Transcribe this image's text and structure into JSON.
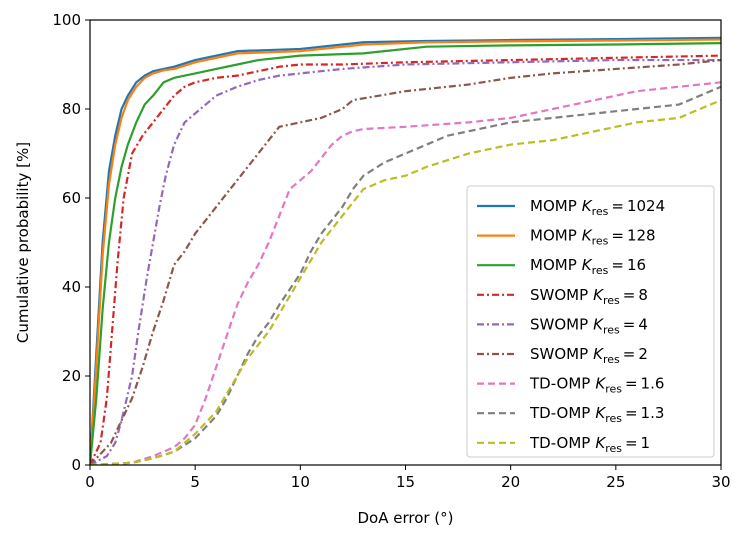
{
  "chart_data": {
    "type": "line",
    "xlabel": "DoA error (°)",
    "ylabel": "Cumulative probability [%]",
    "xlim": [
      0,
      30
    ],
    "ylim": [
      0,
      100
    ],
    "xticks": [
      0,
      5,
      10,
      15,
      20,
      25,
      30
    ],
    "yticks": [
      0,
      20,
      40,
      60,
      80,
      100
    ],
    "grid": false,
    "legend_position": "center-right",
    "series": [
      {
        "name": "MOMP",
        "k_symbol": "K",
        "k_sub": "res",
        "k_value": "1024",
        "color": "#1f77b4",
        "dash": "solid",
        "x": [
          0,
          0.3,
          0.6,
          0.9,
          1.2,
          1.5,
          1.8,
          2.2,
          2.6,
          3,
          3.5,
          4,
          5,
          7,
          10,
          13,
          16,
          20,
          25,
          30
        ],
        "y": [
          0,
          25,
          50,
          66,
          74,
          80,
          83,
          86,
          87.5,
          88.5,
          89,
          89.5,
          91,
          93,
          93.5,
          95,
          95.3,
          95.5,
          95.7,
          96
        ]
      },
      {
        "name": "MOMP",
        "k_symbol": "K",
        "k_sub": "res",
        "k_value": "128",
        "color": "#ff7f0e",
        "dash": "solid",
        "x": [
          0,
          0.3,
          0.6,
          0.9,
          1.2,
          1.5,
          1.8,
          2.2,
          2.6,
          3,
          3.5,
          4,
          5,
          7,
          10,
          13,
          16,
          20,
          25,
          30
        ],
        "y": [
          0,
          22,
          47,
          63,
          72,
          78,
          82,
          85,
          87,
          88,
          88.7,
          89,
          90.5,
          92.5,
          93,
          94.5,
          95,
          95.2,
          95.4,
          95.6
        ]
      },
      {
        "name": "MOMP",
        "k_symbol": "K",
        "k_sub": "res",
        "k_value": "16",
        "color": "#2ca02c",
        "dash": "solid",
        "x": [
          0,
          0.3,
          0.6,
          0.9,
          1.2,
          1.5,
          1.8,
          2.2,
          2.6,
          3,
          3.5,
          4,
          5,
          6,
          7,
          8,
          10,
          13,
          16,
          20,
          25,
          30
        ],
        "y": [
          0,
          15,
          35,
          50,
          60,
          67,
          72,
          77,
          81,
          83,
          86,
          87,
          88,
          89,
          90,
          91,
          92,
          92.5,
          94,
          94.3,
          94.5,
          94.8
        ]
      },
      {
        "name": "SWOMP",
        "k_symbol": "K",
        "k_sub": "res",
        "k_value": "8",
        "color": "#d62728",
        "dash": "dashdot",
        "x": [
          0,
          0.5,
          0.8,
          1,
          1.3,
          1.6,
          2,
          2.5,
          3,
          3.5,
          4,
          4.5,
          5,
          6,
          7,
          8,
          9,
          10,
          12,
          15,
          20,
          25,
          30
        ],
        "y": [
          0,
          5,
          15,
          27,
          45,
          60,
          70,
          74,
          77,
          80,
          83,
          85,
          86,
          87,
          87.5,
          88.5,
          89.5,
          90,
          90,
          90.5,
          91,
          91.5,
          92
        ]
      },
      {
        "name": "SWOMP",
        "k_symbol": "K",
        "k_sub": "res",
        "k_value": "4",
        "color": "#9467bd",
        "dash": "dashdot",
        "x": [
          0,
          0.8,
          1.2,
          1.5,
          2,
          2.3,
          2.7,
          3,
          3.3,
          3.6,
          4,
          4.5,
          5,
          5.5,
          6,
          7,
          8,
          9,
          10,
          11,
          12,
          15,
          20,
          25,
          30
        ],
        "y": [
          0,
          2,
          5,
          10,
          20,
          30,
          42,
          50,
          58,
          65,
          72,
          77,
          79,
          81,
          83,
          85,
          86.5,
          87.5,
          88,
          88.5,
          89,
          90,
          90.5,
          91,
          91
        ]
      },
      {
        "name": "SWOMP",
        "k_symbol": "K",
        "k_sub": "res",
        "k_value": "2",
        "color": "#8c564b",
        "dash": "dashdot",
        "x": [
          0,
          1,
          1.5,
          2,
          2.5,
          3,
          3.5,
          4,
          4.5,
          5,
          6,
          7,
          8,
          8.5,
          9,
          10,
          11,
          12,
          12.5,
          15,
          18,
          20,
          22,
          25,
          28,
          30
        ],
        "y": [
          0,
          5,
          10,
          15,
          22,
          30,
          37,
          45,
          48,
          52,
          58,
          64,
          70,
          73,
          76,
          77,
          78,
          80,
          82,
          84,
          85.5,
          87,
          88,
          89,
          90,
          91
        ]
      },
      {
        "name": "TD-OMP",
        "k_symbol": "K",
        "k_sub": "res",
        "k_value": "1.6",
        "color": "#e377c2",
        "dash": "dashed",
        "x": [
          0,
          2,
          3,
          4,
          4.5,
          5,
          5.5,
          6,
          6.5,
          7,
          7.5,
          8,
          8.5,
          9,
          9.5,
          10,
          10.5,
          11,
          11.5,
          12,
          12.5,
          13,
          15,
          18,
          20,
          22,
          24,
          26,
          28,
          30
        ],
        "y": [
          0,
          0.5,
          2,
          4,
          6,
          9,
          15,
          22,
          29,
          36,
          41,
          45,
          50,
          56,
          62,
          64,
          66,
          69,
          72,
          74,
          75,
          75.5,
          76,
          77,
          78,
          80,
          82,
          84,
          85,
          86
        ]
      },
      {
        "name": "TD-OMP",
        "k_symbol": "K",
        "k_sub": "res",
        "k_value": "1.3",
        "color": "#7f7f7f",
        "dash": "dashed",
        "x": [
          0,
          2,
          3,
          4,
          5,
          6,
          6.5,
          7,
          7.5,
          8,
          8.5,
          9,
          10,
          10.5,
          11,
          11.5,
          12,
          12.5,
          13,
          14,
          15,
          16,
          17,
          18,
          20,
          22,
          24,
          26,
          28,
          29,
          30
        ],
        "y": [
          0,
          0.5,
          1.5,
          3,
          6,
          11,
          15,
          20,
          25,
          29,
          32,
          36,
          43,
          48,
          52,
          55,
          58,
          62,
          65,
          68,
          70,
          72,
          74,
          75,
          77,
          78,
          79,
          80,
          81,
          83,
          85
        ]
      },
      {
        "name": "TD-OMP",
        "k_symbol": "K",
        "k_sub": "res",
        "k_value": "1",
        "color": "#bcbd22",
        "dash": "dashed",
        "x": [
          0,
          2,
          3,
          4,
          5,
          6,
          6.5,
          7,
          7.5,
          8,
          8.5,
          9,
          9.5,
          10,
          10.5,
          11,
          11.5,
          12,
          12.5,
          13,
          14,
          15,
          16,
          17,
          18,
          20,
          22,
          24,
          26,
          28,
          29,
          30
        ],
        "y": [
          0,
          0.5,
          1.5,
          3,
          7,
          12,
          16,
          20,
          24,
          27,
          30,
          34,
          38,
          42,
          46,
          50,
          53,
          56,
          59,
          62,
          64,
          65,
          67,
          68.5,
          70,
          72,
          73,
          75,
          77,
          78,
          80,
          82
        ]
      }
    ]
  }
}
